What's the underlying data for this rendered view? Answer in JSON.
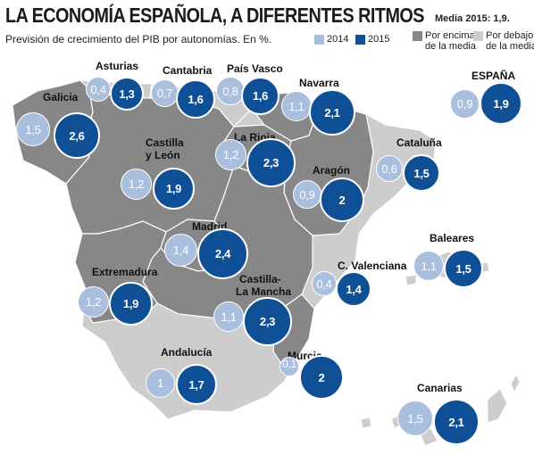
{
  "title": "LA ECONOMÍA ESPAÑOLA, A DIFERENTES RITMOS",
  "subtitle": "Previsión de crecimiento del PIB por autonomías. En %.",
  "media_note": "Media 2015: 1,9.",
  "legend": {
    "year_2014": "2014",
    "year_2015": "2015",
    "above_line1": "Por encima",
    "above_line2": "de la media",
    "below_line1": "Por debajo",
    "below_line2": "de la media"
  },
  "colors": {
    "bubble_2014": "#a9bfdd",
    "bubble_2015": "#0f4f95",
    "region_above": "#878787",
    "region_below": "#cdcdcd"
  },
  "regions": [
    {
      "name": "Galicia",
      "v2014": "1,5",
      "v2015": "2,6"
    },
    {
      "name": "Asturias",
      "v2014": "0,4",
      "v2015": "1,3"
    },
    {
      "name": "Cantabria",
      "v2014": "0,7",
      "v2015": "1,6"
    },
    {
      "name": "País Vasco",
      "v2014": "0,8",
      "v2015": "1,6"
    },
    {
      "name": "Navarra",
      "v2014": "1,1",
      "v2015": "2,1"
    },
    {
      "name": "La Rioja",
      "v2014": "1,2",
      "v2015": "2,3"
    },
    {
      "name": "Castilla y León",
      "name_line1": "Castilla",
      "name_line2": "y León",
      "v2014": "1,2",
      "v2015": "1,9"
    },
    {
      "name": "Aragón",
      "v2014": "0,9",
      "v2015": "2"
    },
    {
      "name": "Cataluña",
      "v2014": "0,6",
      "v2015": "1,5"
    },
    {
      "name": "Madrid",
      "v2014": "1,4",
      "v2015": "2,4"
    },
    {
      "name": "Baleares",
      "v2014": "1,1",
      "v2015": "1,5"
    },
    {
      "name": "Extremadura",
      "v2014": "1,2",
      "v2015": "1,9"
    },
    {
      "name": "Castilla-La Mancha",
      "name_line1": "Castilla-",
      "name_line2": "La Mancha",
      "v2014": "1,1",
      "v2015": "2,3"
    },
    {
      "name": "C. Valenciana",
      "v2014": "0,4",
      "v2015": "1,4"
    },
    {
      "name": "Andalucía",
      "v2014": "1",
      "v2015": "1,7"
    },
    {
      "name": "Murcia",
      "v2014": "0,1",
      "v2015": "2"
    },
    {
      "name": "Canarias",
      "v2014": "1,5",
      "v2015": "2,1"
    },
    {
      "name": "ESPAÑA",
      "v2014": "0,9",
      "v2015": "1,9"
    }
  ]
}
